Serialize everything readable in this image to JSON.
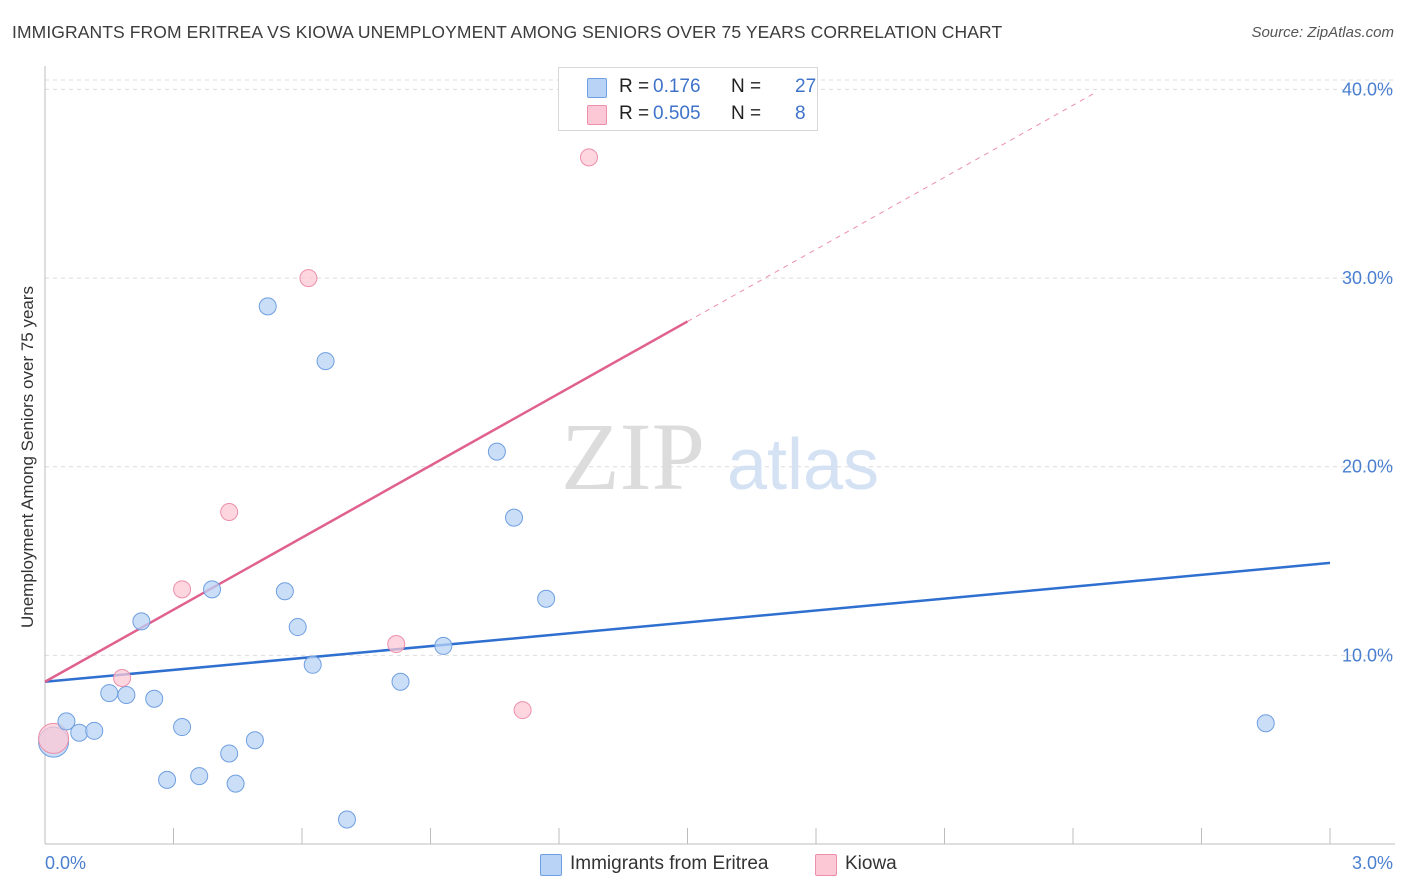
{
  "header": {
    "title": "IMMIGRANTS FROM ERITREA VS KIOWA UNEMPLOYMENT AMONG SENIORS OVER 75 YEARS CORRELATION CHART",
    "source": "Source: ZipAtlas.com"
  },
  "watermark": {
    "zip": "ZIP",
    "atlas": "atlas"
  },
  "legend": {
    "rows": [
      {
        "r_label": "R =",
        "r_value": "0.176",
        "n_label": "N =",
        "n_value": "27"
      },
      {
        "r_label": "R =",
        "r_value": "0.505",
        "n_label": "N =",
        "n_value": "8"
      }
    ],
    "bottom": [
      "Immigrants from Eritrea",
      "Kiowa"
    ]
  },
  "chart_data": {
    "type": "scatter",
    "title": "IMMIGRANTS FROM ERITREA VS KIOWA UNEMPLOYMENT AMONG SENIORS OVER 75 YEARS CORRELATION CHART",
    "xlabel": "",
    "ylabel": "Unemployment Among Seniors over 75 years",
    "xlim": [
      0,
      3.0
    ],
    "ylim": [
      0,
      40.5
    ],
    "x_tick_labels": [
      "0.0%",
      "3.0%"
    ],
    "y_ticks": [
      10,
      20,
      30,
      40
    ],
    "y_tick_labels": [
      "10.0%",
      "20.0%",
      "30.0%",
      "40.0%"
    ],
    "colors": {
      "eritrea_fill": "#b8d3f5",
      "eritrea_stroke": "#6f9fe0",
      "eritrea_line": "#2f6fd0",
      "kiowa_fill": "#fcc8d6",
      "kiowa_stroke": "#ec8fab",
      "kiowa_line": "#e0608e",
      "axis_label": "#4a7fd0",
      "grid": "#dcdcdc"
    },
    "series": [
      {
        "name": "Immigrants from Eritrea",
        "points": [
          {
            "x": 0.02,
            "y": 5.4,
            "size": "large"
          },
          {
            "x": 0.05,
            "y": 6.5
          },
          {
            "x": 0.08,
            "y": 5.9
          },
          {
            "x": 0.115,
            "y": 6.0
          },
          {
            "x": 0.15,
            "y": 8.0
          },
          {
            "x": 0.19,
            "y": 7.9
          },
          {
            "x": 0.225,
            "y": 11.8
          },
          {
            "x": 0.255,
            "y": 7.7
          },
          {
            "x": 0.285,
            "y": 3.4
          },
          {
            "x": 0.32,
            "y": 6.2
          },
          {
            "x": 0.36,
            "y": 3.6
          },
          {
            "x": 0.39,
            "y": 13.5
          },
          {
            "x": 0.43,
            "y": 4.8
          },
          {
            "x": 0.445,
            "y": 3.2
          },
          {
            "x": 0.49,
            "y": 5.5
          },
          {
            "x": 0.52,
            "y": 28.5
          },
          {
            "x": 0.56,
            "y": 13.4
          },
          {
            "x": 0.59,
            "y": 11.5
          },
          {
            "x": 0.625,
            "y": 9.5
          },
          {
            "x": 0.655,
            "y": 25.6
          },
          {
            "x": 0.705,
            "y": 1.3
          },
          {
            "x": 0.83,
            "y": 8.6
          },
          {
            "x": 0.93,
            "y": 10.5
          },
          {
            "x": 1.055,
            "y": 20.8
          },
          {
            "x": 1.095,
            "y": 17.3
          },
          {
            "x": 1.17,
            "y": 13.0
          },
          {
            "x": 2.85,
            "y": 6.4
          }
        ],
        "trend": {
          "x0": 0.0,
          "y0": 8.6,
          "x1": 3.0,
          "y1": 14.9
        }
      },
      {
        "name": "Kiowa",
        "points": [
          {
            "x": 0.02,
            "y": 5.6,
            "size": "large"
          },
          {
            "x": 0.18,
            "y": 8.8
          },
          {
            "x": 0.32,
            "y": 13.5
          },
          {
            "x": 0.43,
            "y": 17.6
          },
          {
            "x": 0.615,
            "y": 30.0
          },
          {
            "x": 0.82,
            "y": 10.6
          },
          {
            "x": 1.115,
            "y": 7.1
          },
          {
            "x": 1.27,
            "y": 36.4
          }
        ],
        "trend": {
          "x0": 0.0,
          "y0": 8.6,
          "x1": 1.5,
          "y1": 27.7
        },
        "trend_extension": {
          "x0": 1.5,
          "y0": 27.7,
          "x1": 2.45,
          "y1": 39.8
        }
      }
    ]
  }
}
